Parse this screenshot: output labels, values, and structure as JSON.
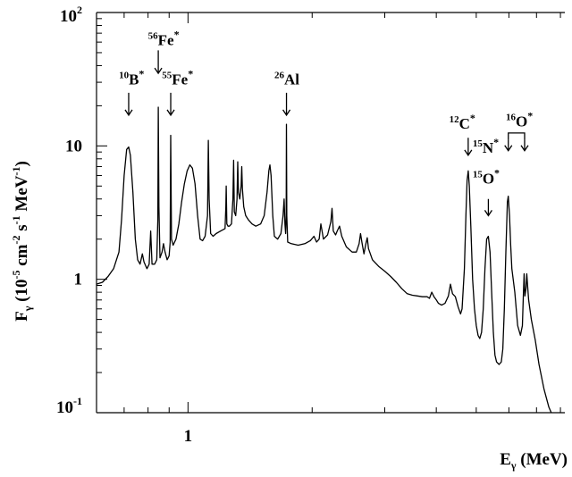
{
  "chart_data": {
    "type": "line",
    "title": "",
    "xlabel": {
      "main": "E",
      "sub": "γ",
      "tail": " (MeV)"
    },
    "ylabel": {
      "main": "F",
      "sub": "γ",
      "rest": " (10",
      "e1": "-5",
      "u1": " cm",
      "e2": "-2",
      "u2": " s",
      "e3": "-1",
      "u3": " MeV",
      "e4": "-1",
      "end": ")"
    },
    "xscale": "log",
    "yscale": "log",
    "xlim": [
      0.6,
      8.2
    ],
    "ylim": [
      0.1,
      100
    ],
    "grid": false,
    "x_tick_labels": [
      {
        "x": 1,
        "text": "1"
      }
    ],
    "y_tick_labels": [
      {
        "y": 0.1,
        "base": "10",
        "exp": "-1"
      },
      {
        "y": 1,
        "base": "1",
        "exp": ""
      },
      {
        "y": 10,
        "base": "10",
        "exp": ""
      },
      {
        "y": 100,
        "base": "10",
        "exp": "2"
      }
    ],
    "series": [
      {
        "values": [
          [
            0.6,
            0.92
          ],
          [
            0.62,
            0.95
          ],
          [
            0.64,
            1.05
          ],
          [
            0.66,
            1.2
          ],
          [
            0.68,
            1.6
          ],
          [
            0.69,
            2.8
          ],
          [
            0.7,
            6.0
          ],
          [
            0.71,
            9.4
          ],
          [
            0.718,
            9.8
          ],
          [
            0.725,
            8.5
          ],
          [
            0.735,
            4.5
          ],
          [
            0.745,
            2.0
          ],
          [
            0.755,
            1.4
          ],
          [
            0.765,
            1.3
          ],
          [
            0.775,
            1.55
          ],
          [
            0.782,
            1.35
          ],
          [
            0.795,
            1.2
          ],
          [
            0.805,
            1.3
          ],
          [
            0.812,
            2.3
          ],
          [
            0.818,
            1.3
          ],
          [
            0.83,
            1.3
          ],
          [
            0.84,
            1.4
          ],
          [
            0.845,
            2.8
          ],
          [
            0.847,
            19.5
          ],
          [
            0.85,
            3.5
          ],
          [
            0.855,
            1.45
          ],
          [
            0.865,
            1.6
          ],
          [
            0.872,
            1.85
          ],
          [
            0.88,
            1.6
          ],
          [
            0.89,
            1.4
          ],
          [
            0.9,
            1.5
          ],
          [
            0.905,
            1.9
          ],
          [
            0.908,
            12.0
          ],
          [
            0.912,
            2.0
          ],
          [
            0.92,
            1.8
          ],
          [
            0.935,
            2.0
          ],
          [
            0.95,
            2.6
          ],
          [
            0.965,
            3.8
          ],
          [
            0.98,
            5.2
          ],
          [
            0.995,
            6.5
          ],
          [
            1.01,
            7.2
          ],
          [
            1.025,
            6.8
          ],
          [
            1.04,
            5.2
          ],
          [
            1.055,
            3.0
          ],
          [
            1.07,
            2.0
          ],
          [
            1.085,
            1.95
          ],
          [
            1.1,
            2.1
          ],
          [
            1.115,
            3.0
          ],
          [
            1.12,
            11.0
          ],
          [
            1.125,
            4.0
          ],
          [
            1.135,
            2.2
          ],
          [
            1.15,
            2.1
          ],
          [
            1.17,
            2.2
          ],
          [
            1.2,
            2.3
          ],
          [
            1.23,
            2.4
          ],
          [
            1.235,
            3.5
          ],
          [
            1.238,
            5.0
          ],
          [
            1.242,
            2.6
          ],
          [
            1.25,
            2.5
          ],
          [
            1.26,
            2.5
          ],
          [
            1.275,
            2.6
          ],
          [
            1.285,
            4.0
          ],
          [
            1.29,
            7.8
          ],
          [
            1.295,
            3.2
          ],
          [
            1.305,
            3.0
          ],
          [
            1.315,
            4.0
          ],
          [
            1.32,
            7.6
          ],
          [
            1.325,
            4.5
          ],
          [
            1.335,
            4.0
          ],
          [
            1.345,
            5.0
          ],
          [
            1.35,
            7.0
          ],
          [
            1.355,
            4.8
          ],
          [
            1.365,
            3.5
          ],
          [
            1.38,
            3.0
          ],
          [
            1.4,
            2.8
          ],
          [
            1.43,
            2.6
          ],
          [
            1.46,
            2.5
          ],
          [
            1.5,
            2.6
          ],
          [
            1.53,
            3.0
          ],
          [
            1.555,
            4.5
          ],
          [
            1.57,
            6.5
          ],
          [
            1.58,
            7.2
          ],
          [
            1.59,
            6.0
          ],
          [
            1.605,
            3.0
          ],
          [
            1.62,
            2.1
          ],
          [
            1.65,
            2.0
          ],
          [
            1.68,
            2.2
          ],
          [
            1.7,
            3.0
          ],
          [
            1.71,
            4.0
          ],
          [
            1.718,
            2.6
          ],
          [
            1.725,
            2.2
          ],
          [
            1.73,
            3.0
          ],
          [
            1.733,
            14.5
          ],
          [
            1.736,
            3.0
          ],
          [
            1.745,
            1.9
          ],
          [
            1.78,
            1.85
          ],
          [
            1.85,
            1.8
          ],
          [
            1.92,
            1.85
          ],
          [
            1.98,
            1.95
          ],
          [
            2.02,
            2.1
          ],
          [
            2.05,
            1.9
          ],
          [
            2.08,
            2.0
          ],
          [
            2.1,
            2.6
          ],
          [
            2.13,
            2.0
          ],
          [
            2.18,
            2.15
          ],
          [
            2.22,
            2.7
          ],
          [
            2.235,
            3.4
          ],
          [
            2.25,
            2.3
          ],
          [
            2.28,
            2.15
          ],
          [
            2.3,
            2.3
          ],
          [
            2.33,
            2.5
          ],
          [
            2.36,
            2.1
          ],
          [
            2.42,
            1.75
          ],
          [
            2.5,
            1.6
          ],
          [
            2.56,
            1.6
          ],
          [
            2.6,
            1.85
          ],
          [
            2.62,
            2.2
          ],
          [
            2.64,
            1.9
          ],
          [
            2.67,
            1.55
          ],
          [
            2.7,
            1.85
          ],
          [
            2.72,
            2.05
          ],
          [
            2.74,
            1.7
          ],
          [
            2.8,
            1.4
          ],
          [
            2.9,
            1.25
          ],
          [
            3.0,
            1.15
          ],
          [
            3.1,
            1.05
          ],
          [
            3.2,
            0.95
          ],
          [
            3.3,
            0.85
          ],
          [
            3.4,
            0.78
          ],
          [
            3.5,
            0.76
          ],
          [
            3.6,
            0.75
          ],
          [
            3.7,
            0.74
          ],
          [
            3.8,
            0.74
          ],
          [
            3.85,
            0.72
          ],
          [
            3.9,
            0.8
          ],
          [
            3.95,
            0.74
          ],
          [
            4.0,
            0.7
          ],
          [
            4.05,
            0.66
          ],
          [
            4.12,
            0.64
          ],
          [
            4.2,
            0.66
          ],
          [
            4.28,
            0.75
          ],
          [
            4.33,
            0.92
          ],
          [
            4.38,
            0.78
          ],
          [
            4.45,
            0.74
          ],
          [
            4.52,
            0.62
          ],
          [
            4.58,
            0.55
          ],
          [
            4.62,
            0.6
          ],
          [
            4.68,
            1.2
          ],
          [
            4.72,
            3.0
          ],
          [
            4.75,
            5.5
          ],
          [
            4.78,
            6.5
          ],
          [
            4.81,
            5.0
          ],
          [
            4.85,
            2.5
          ],
          [
            4.9,
            1.0
          ],
          [
            4.95,
            0.6
          ],
          [
            5.0,
            0.45
          ],
          [
            5.05,
            0.38
          ],
          [
            5.1,
            0.36
          ],
          [
            5.15,
            0.4
          ],
          [
            5.2,
            0.6
          ],
          [
            5.25,
            1.2
          ],
          [
            5.3,
            2.0
          ],
          [
            5.35,
            2.1
          ],
          [
            5.4,
            1.6
          ],
          [
            5.45,
            0.8
          ],
          [
            5.5,
            0.4
          ],
          [
            5.55,
            0.27
          ],
          [
            5.6,
            0.24
          ],
          [
            5.68,
            0.23
          ],
          [
            5.75,
            0.24
          ],
          [
            5.8,
            0.3
          ],
          [
            5.85,
            0.6
          ],
          [
            5.9,
            1.6
          ],
          [
            5.95,
            3.8
          ],
          [
            5.98,
            4.2
          ],
          [
            6.02,
            3.0
          ],
          [
            6.06,
            1.8
          ],
          [
            6.1,
            1.2
          ],
          [
            6.2,
            0.8
          ],
          [
            6.3,
            0.45
          ],
          [
            6.4,
            0.38
          ],
          [
            6.47,
            0.45
          ],
          [
            6.5,
            0.7
          ],
          [
            6.53,
            1.1
          ],
          [
            6.56,
            0.75
          ],
          [
            6.6,
            0.85
          ],
          [
            6.63,
            1.1
          ],
          [
            6.66,
            0.9
          ],
          [
            6.7,
            0.7
          ],
          [
            6.8,
            0.5
          ],
          [
            6.95,
            0.35
          ],
          [
            7.1,
            0.23
          ],
          [
            7.3,
            0.15
          ],
          [
            7.5,
            0.11
          ],
          [
            7.6,
            0.1
          ]
        ]
      }
    ],
    "annotations": [
      {
        "iso": "10",
        "elem": "B",
        "x": 0.718,
        "lx": 0.68,
        "arrow_top_y": 25,
        "arrow_bottom_y": 17,
        "label_y": 29,
        "star": true
      },
      {
        "iso": "56",
        "elem": "Fe",
        "x": 0.847,
        "lx": 0.8,
        "arrow_top_y": 52,
        "arrow_bottom_y": 35,
        "label_y": 57,
        "star": true
      },
      {
        "iso": "55",
        "elem": "Fe",
        "x": 0.908,
        "lx": 0.865,
        "arrow_top_y": 25,
        "arrow_bottom_y": 17,
        "label_y": 29,
        "star": true
      },
      {
        "iso": "26",
        "elem": "Al",
        "x": 1.733,
        "lx": 1.62,
        "arrow_top_y": 25,
        "arrow_bottom_y": 17,
        "label_y": 29,
        "star": false
      },
      {
        "iso": "12",
        "elem": "C",
        "x": 4.78,
        "lx": 4.3,
        "arrow_top_y": 11.5,
        "arrow_bottom_y": 8.5,
        "label_y": 13.5,
        "star": true
      },
      {
        "iso": "15",
        "elem": "N",
        "x": 5.35,
        "lx": 4.9,
        "arrow_top_y": 4.0,
        "arrow_bottom_y": 3.0,
        "label_y": 8.9,
        "star": true
      },
      {
        "iso": "15",
        "elem": "O",
        "x": 5.35,
        "lx": 4.9,
        "arrow_top_y": 4.0,
        "arrow_bottom_y": 3.0,
        "label_y": 5.2,
        "star": true
      },
      {
        "iso": "16",
        "elem": "O",
        "x": 5.98,
        "lx": 5.9,
        "bracket_x2": 6.55,
        "arrow_top_y": 12.5,
        "arrow_bottom_y": 9.2,
        "label_y": 14.0,
        "star": true
      }
    ]
  }
}
